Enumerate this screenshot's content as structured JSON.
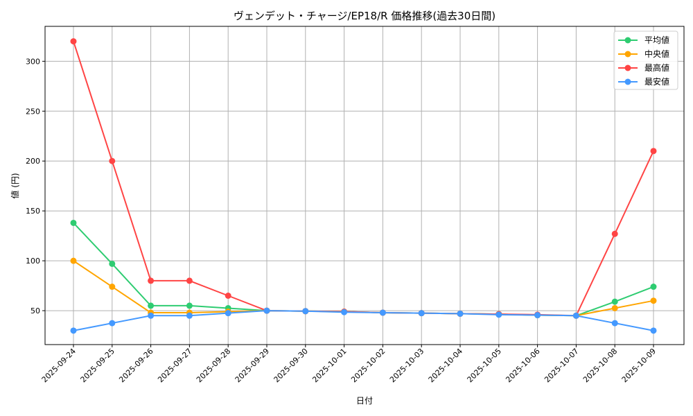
{
  "chart_data": {
    "type": "line",
    "title": "ヴェンデット・チャージ/EP18/R 価格推移(過去30日間)",
    "xlabel": "日付",
    "ylabel": "値 (円)",
    "ylim": [
      16,
      335
    ],
    "yticks": [
      50,
      100,
      150,
      200,
      250,
      300
    ],
    "grid": true,
    "legend_position": "top-right",
    "categories": [
      "2025-09-24",
      "2025-09-25",
      "2025-09-26",
      "2025-09-27",
      "2025-09-28",
      "2025-09-29",
      "2025-09-30",
      "2025-10-01",
      "2025-10-02",
      "2025-10-03",
      "2025-10-04",
      "2025-10-05",
      "2025-10-06",
      "2025-10-07",
      "2025-10-08",
      "2025-10-09"
    ],
    "series": [
      {
        "name": "平均値",
        "color": "#2ecc71",
        "values": [
          138,
          97,
          55,
          55,
          52.5,
          50,
          49.5,
          49,
          48,
          47.5,
          47,
          46.5,
          45.5,
          45,
          59,
          74
        ]
      },
      {
        "name": "中央値",
        "color": "#ffa500",
        "values": [
          100,
          74,
          48,
          48,
          49,
          50,
          49.5,
          49,
          48,
          47.5,
          47,
          46.5,
          45.5,
          45,
          52.5,
          60
        ]
      },
      {
        "name": "最高値",
        "color": "#ff4444",
        "values": [
          320,
          200,
          80,
          80,
          65,
          50,
          49.5,
          49,
          48,
          47.5,
          47,
          46.5,
          46,
          45,
          127,
          210
        ]
      },
      {
        "name": "最安値",
        "color": "#4499ff",
        "values": [
          30,
          37.5,
          45,
          45,
          47.5,
          50,
          49.5,
          48.5,
          48,
          47.5,
          47,
          46,
          45.5,
          45,
          37.5,
          30
        ]
      }
    ]
  }
}
